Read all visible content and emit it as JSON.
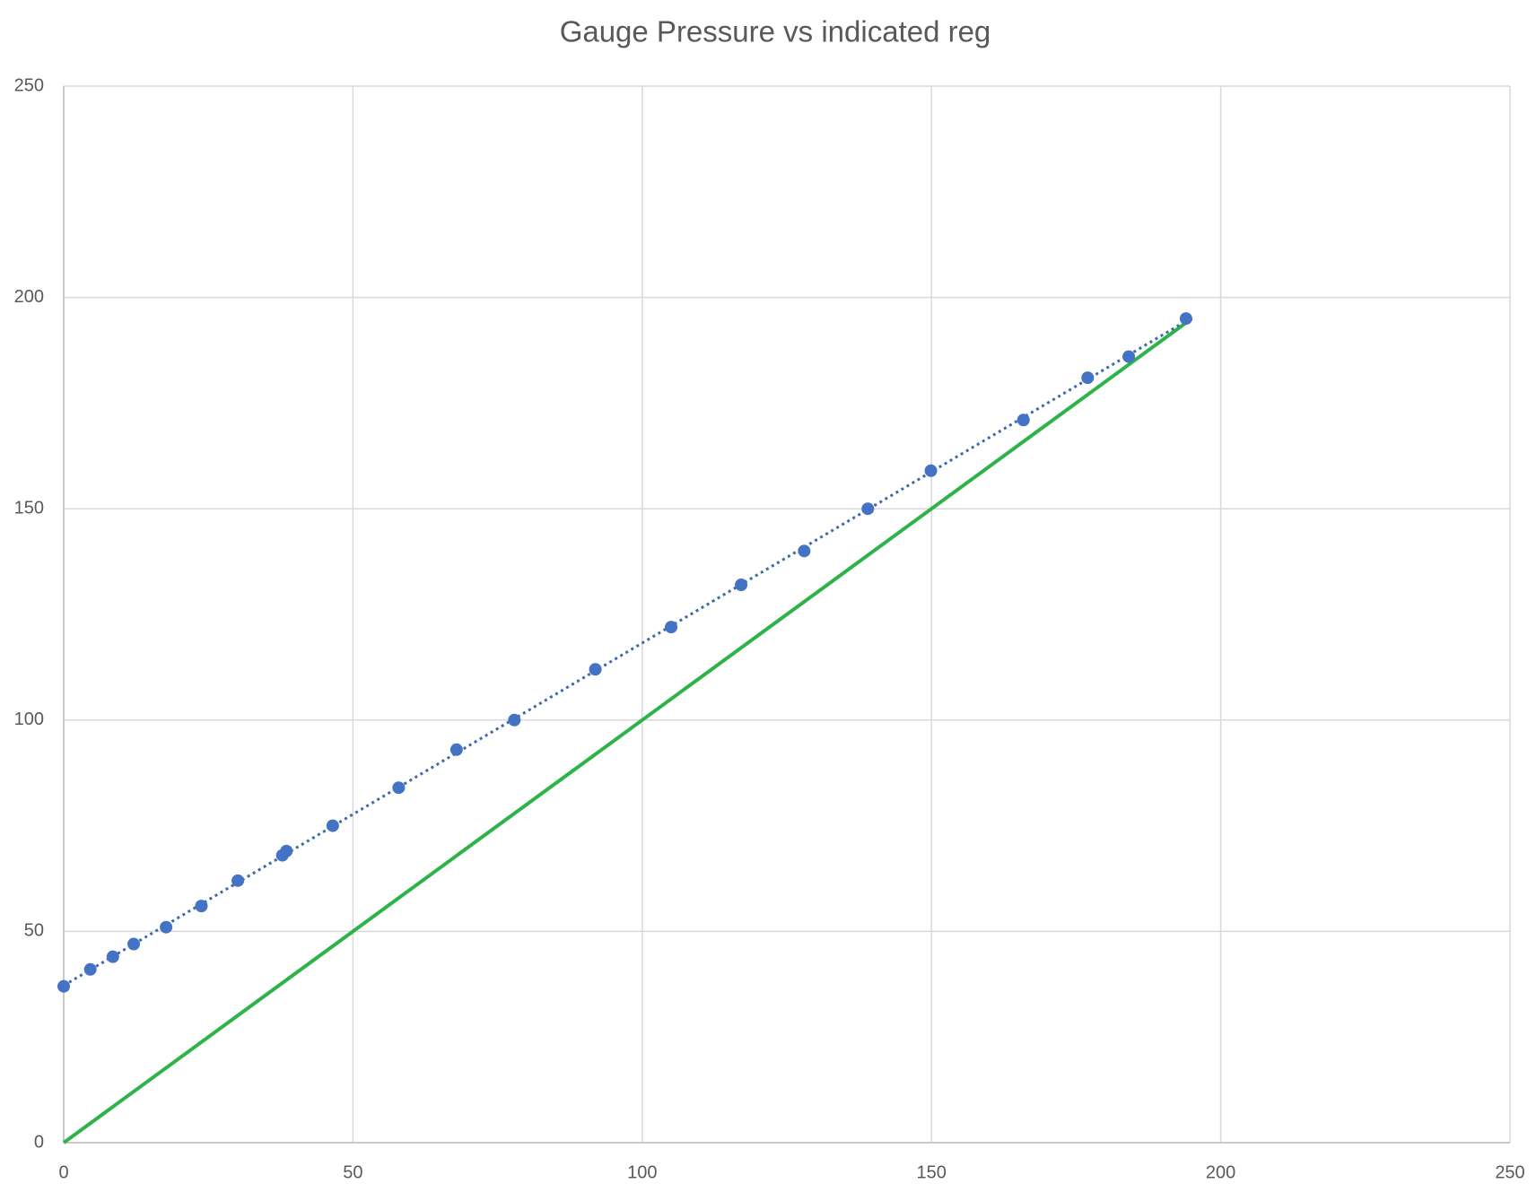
{
  "chart_data": {
    "type": "scatter",
    "title": "Gauge Pressure vs indicated reg",
    "xlim": [
      0,
      250
    ],
    "xticks": [
      0,
      50,
      100,
      150,
      200,
      250
    ],
    "ylim": [
      0,
      250
    ],
    "yticks": [
      0,
      50,
      100,
      150,
      200,
      250
    ],
    "grid": true,
    "series": [
      {
        "color": "#4472c4",
        "trendline": "linear",
        "trendline_style": "dotted",
        "trendline_color": "#3f6aa8",
        "x": [
          0,
          4.6,
          8.5,
          12.1,
          17.7,
          23.8,
          30.1,
          37.8,
          38.5,
          46.5,
          57.9,
          67.9,
          77.9,
          91.9,
          105,
          117.1,
          128,
          139,
          149.9,
          165.9,
          177,
          184.1,
          194
        ],
        "values": [
          37,
          41,
          44,
          47,
          51,
          56,
          62,
          68,
          69,
          75,
          84,
          93,
          100,
          112,
          122,
          132,
          140,
          150,
          159,
          171,
          181,
          186,
          195
        ]
      },
      {
        "type": "line",
        "color": "#2db34a",
        "x": [
          0,
          195
        ],
        "values": [
          0,
          195
        ]
      }
    ]
  }
}
